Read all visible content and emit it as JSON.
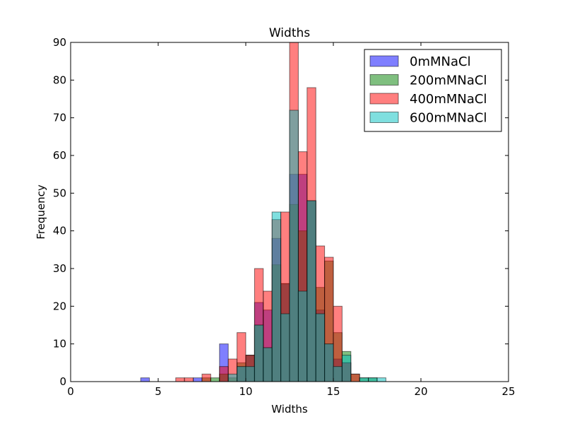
{
  "chart_data": {
    "type": "bar",
    "subtype": "overlapping-histogram",
    "title": "Widths",
    "xlabel": "Widths",
    "ylabel": "Frequency",
    "xlim": [
      0,
      25
    ],
    "ylim": [
      0,
      90
    ],
    "xticks": [
      "0",
      "5",
      "10",
      "15",
      "20",
      "25"
    ],
    "yticks": [
      "0",
      "10",
      "20",
      "30",
      "40",
      "50",
      "60",
      "70",
      "80",
      "90"
    ],
    "grid": false,
    "legend_position": "top-right",
    "bin_width": 0.5,
    "bar_opacity": 0.5,
    "series": [
      {
        "name": "0mMNaCl",
        "color": "#0000ff",
        "bins": [
          [
            4.25,
            1
          ],
          [
            7.25,
            1
          ],
          [
            8.75,
            10
          ],
          [
            9.75,
            4
          ],
          [
            10.25,
            7
          ],
          [
            10.75,
            21
          ],
          [
            11.25,
            19
          ],
          [
            11.75,
            38
          ],
          [
            12.25,
            26
          ],
          [
            12.75,
            55
          ],
          [
            13.25,
            55
          ],
          [
            13.75,
            48
          ],
          [
            14.25,
            19
          ],
          [
            14.75,
            10
          ],
          [
            15.25,
            6
          ],
          [
            15.75,
            5
          ]
        ]
      },
      {
        "name": "200mMNaCl",
        "color": "#008000",
        "bins": [
          [
            7.75,
            1
          ],
          [
            8.25,
            1
          ],
          [
            8.75,
            2
          ],
          [
            9.25,
            1
          ],
          [
            9.75,
            5
          ],
          [
            10.25,
            7
          ],
          [
            10.75,
            15
          ],
          [
            11.25,
            9
          ],
          [
            11.75,
            31
          ],
          [
            12.25,
            26
          ],
          [
            12.75,
            47
          ],
          [
            13.25,
            40
          ],
          [
            13.75,
            48
          ],
          [
            14.25,
            25
          ],
          [
            14.75,
            32
          ],
          [
            15.25,
            13
          ],
          [
            15.75,
            8
          ],
          [
            16.25,
            2
          ],
          [
            16.75,
            1
          ],
          [
            17.25,
            1
          ]
        ]
      },
      {
        "name": "400mMNaCl",
        "color": "#ff0000",
        "bins": [
          [
            6.25,
            1
          ],
          [
            6.75,
            1
          ],
          [
            7.75,
            2
          ],
          [
            8.75,
            4
          ],
          [
            9.25,
            6
          ],
          [
            9.75,
            13
          ],
          [
            10.25,
            7
          ],
          [
            10.75,
            30
          ],
          [
            11.25,
            24
          ],
          [
            11.75,
            43
          ],
          [
            12.25,
            45
          ],
          [
            12.75,
            90
          ],
          [
            13.25,
            61
          ],
          [
            13.75,
            78
          ],
          [
            14.25,
            36
          ],
          [
            14.75,
            33
          ],
          [
            15.25,
            20
          ],
          [
            15.75,
            5
          ],
          [
            16.25,
            2
          ]
        ]
      },
      {
        "name": "600mMNaCl",
        "color": "#00bfbf",
        "bins": [
          [
            9.25,
            2
          ],
          [
            9.75,
            4
          ],
          [
            10.25,
            4
          ],
          [
            10.75,
            15
          ],
          [
            11.25,
            9
          ],
          [
            11.75,
            45
          ],
          [
            12.25,
            18
          ],
          [
            12.75,
            72
          ],
          [
            13.25,
            24
          ],
          [
            13.75,
            48
          ],
          [
            14.25,
            18
          ],
          [
            14.75,
            10
          ],
          [
            15.25,
            4
          ],
          [
            15.75,
            7
          ],
          [
            16.75,
            1
          ],
          [
            17.25,
            1
          ],
          [
            17.75,
            1
          ]
        ]
      }
    ]
  }
}
